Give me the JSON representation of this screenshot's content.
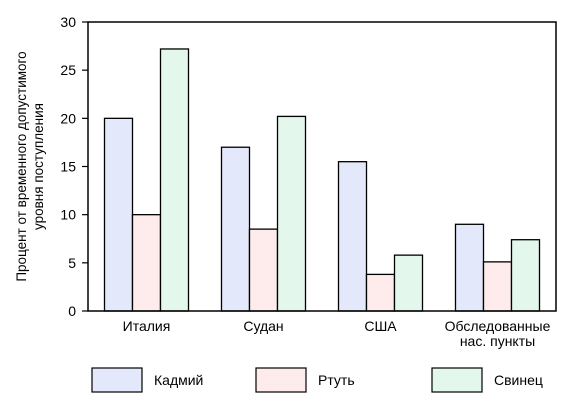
{
  "chart_data": {
    "type": "bar",
    "title": "",
    "xlabel": "",
    "ylabel": [
      "Процент от временного допустимого",
      "уровня поступления"
    ],
    "ylim": [
      0,
      30
    ],
    "yticks": [
      0,
      5,
      10,
      15,
      20,
      25,
      30
    ],
    "grid": false,
    "legend_position": "bottom",
    "categories": [
      [
        "Италия"
      ],
      [
        "Судан"
      ],
      [
        "США"
      ],
      [
        "Обследованные",
        "нас. пункты"
      ]
    ],
    "series": [
      {
        "name": "Кадмий",
        "values": [
          20,
          17,
          15.5,
          9
        ],
        "color": "#e4e8fb"
      },
      {
        "name": "Ртуть",
        "values": [
          10,
          8.5,
          3.8,
          5.1
        ],
        "color": "#fdeceb"
      },
      {
        "name": "Свинец",
        "values": [
          27.2,
          20.2,
          5.8,
          7.4
        ],
        "color": "#e3f7ec"
      }
    ]
  }
}
